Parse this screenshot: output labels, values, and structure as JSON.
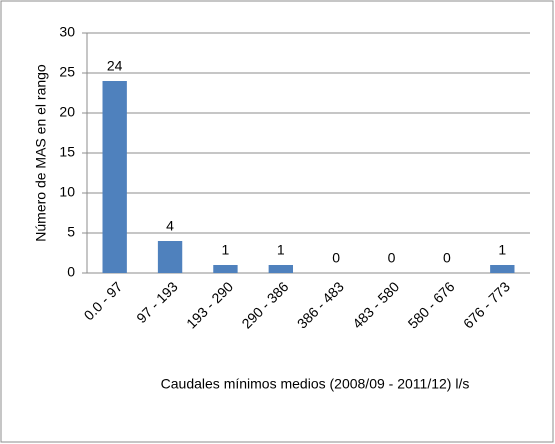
{
  "chart_data": {
    "type": "bar",
    "y_label": "Número de MAS en el rango",
    "x_label": "Caudales mínimos medios (2008/09 - 2011/12) l/s",
    "categories": [
      "0.0 - 97",
      "97 - 193",
      "193 - 290",
      "290 - 386",
      "386 - 483",
      "483 - 580",
      "580 - 676",
      "676 - 773"
    ],
    "values": [
      24,
      4,
      1,
      1,
      0,
      0,
      0,
      1
    ],
    "color": "#4f81bd",
    "ylim": [
      0,
      30
    ],
    "yticks": [
      0,
      5,
      10,
      15,
      20,
      25,
      30
    ],
    "grid": true
  }
}
